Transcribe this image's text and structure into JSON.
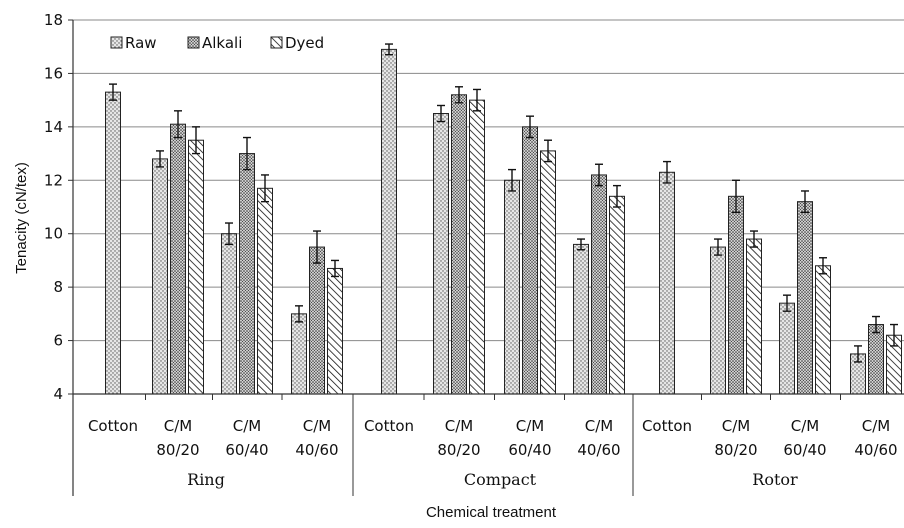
{
  "chart_data": {
    "type": "bar",
    "xlabel": "Chemical treatment",
    "ylabel": "Tenacity (cN/tex)",
    "ylim": [
      4,
      18
    ],
    "yticks": [
      4,
      6,
      8,
      10,
      12,
      14,
      16,
      18
    ],
    "grid": true,
    "legend_position": "top-left",
    "groups": [
      {
        "name": "Ring",
        "categories": [
          {
            "label": [
              "Cotton"
            ],
            "values": [
              15.3,
              null,
              null
            ],
            "errors": [
              0.3,
              null,
              null
            ]
          },
          {
            "label": [
              "C/M",
              "80/20"
            ],
            "values": [
              12.8,
              14.1,
              13.5
            ],
            "errors": [
              0.3,
              0.5,
              0.5
            ]
          },
          {
            "label": [
              "C/M",
              "60/40"
            ],
            "values": [
              10.0,
              13.0,
              11.7
            ],
            "errors": [
              0.4,
              0.6,
              0.5
            ]
          },
          {
            "label": [
              "C/M",
              "40/60"
            ],
            "values": [
              7.0,
              9.5,
              8.7
            ],
            "errors": [
              0.3,
              0.6,
              0.3
            ]
          }
        ]
      },
      {
        "name": "Compact",
        "categories": [
          {
            "label": [
              "Cotton"
            ],
            "values": [
              16.9,
              null,
              null
            ],
            "errors": [
              0.2,
              null,
              null
            ]
          },
          {
            "label": [
              "C/M",
              "80/20"
            ],
            "values": [
              14.5,
              15.2,
              15.0
            ],
            "errors": [
              0.3,
              0.3,
              0.4
            ]
          },
          {
            "label": [
              "C/M",
              "60/40"
            ],
            "values": [
              12.0,
              14.0,
              13.1
            ],
            "errors": [
              0.4,
              0.4,
              0.4
            ]
          },
          {
            "label": [
              "C/M",
              "40/60"
            ],
            "values": [
              9.6,
              12.2,
              11.4
            ],
            "errors": [
              0.2,
              0.4,
              0.4
            ]
          }
        ]
      },
      {
        "name": "Rotor",
        "categories": [
          {
            "label": [
              "Cotton"
            ],
            "values": [
              12.3,
              null,
              null
            ],
            "errors": [
              0.4,
              null,
              null
            ]
          },
          {
            "label": [
              "C/M",
              "80/20"
            ],
            "values": [
              9.5,
              11.4,
              9.8
            ],
            "errors": [
              0.3,
              0.6,
              0.3
            ]
          },
          {
            "label": [
              "C/M",
              "60/40"
            ],
            "values": [
              7.4,
              11.2,
              8.8
            ],
            "errors": [
              0.3,
              0.4,
              0.3
            ]
          },
          {
            "label": [
              "C/M",
              "40/60"
            ],
            "values": [
              5.5,
              6.6,
              6.2
            ],
            "errors": [
              0.3,
              0.3,
              0.4
            ]
          }
        ]
      }
    ],
    "series": [
      {
        "name": "Raw",
        "pattern": "light-dots",
        "color": "#d9d9d9"
      },
      {
        "name": "Alkali",
        "pattern": "dense-dots",
        "color": "#bdbdbd"
      },
      {
        "name": "Dyed",
        "pattern": "diagonal-hatch",
        "color": "#ffffff"
      }
    ]
  }
}
